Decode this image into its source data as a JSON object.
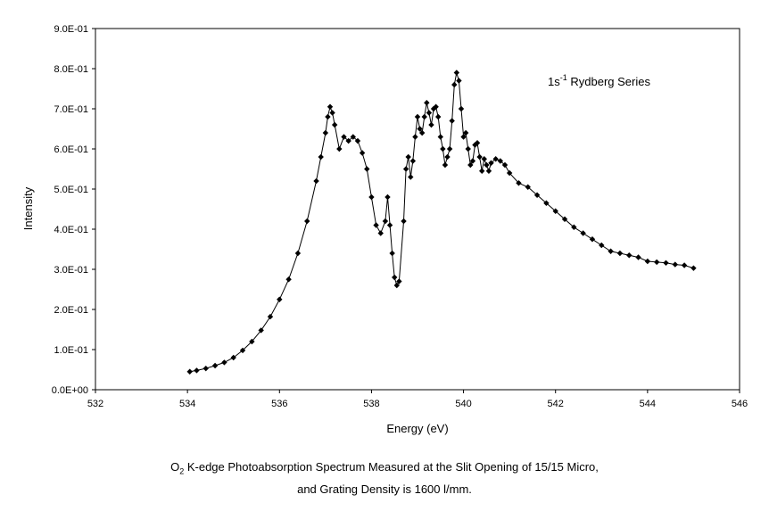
{
  "chart_data": {
    "type": "scatter",
    "xlabel": "Energy (eV)",
    "ylabel": "Intensity",
    "xlim": [
      532,
      546
    ],
    "ylim": [
      0,
      0.9
    ],
    "x_ticks": [
      "532",
      "534",
      "536",
      "538",
      "540",
      "542",
      "544",
      "546"
    ],
    "y_ticks": [
      "0.0E+00",
      "1.0E-01",
      "2.0E-01",
      "3.0E-01",
      "4.0E-01",
      "5.0E-01",
      "6.0E-01",
      "7.0E-01",
      "8.0E-01",
      "9.0E-01"
    ],
    "grid": false,
    "legend": "none",
    "annotation": {
      "prefix": "1s",
      "superscript": "-1",
      "suffix": " Rydberg Series"
    },
    "marker": "diamond",
    "line_color": "#000000",
    "series": [
      {
        "x": [
          534.05,
          534.2,
          534.4,
          534.6,
          534.8,
          535.0,
          535.2,
          535.4,
          535.6,
          535.8,
          536.0,
          536.2,
          536.4,
          536.6,
          536.8,
          536.9,
          537.0,
          537.05,
          537.1,
          537.15,
          537.2,
          537.3,
          537.4,
          537.5,
          537.6,
          537.7,
          537.8,
          537.9,
          538.0,
          538.1,
          538.2,
          538.3,
          538.35,
          538.4,
          538.45,
          538.5,
          538.55,
          538.6,
          538.7,
          538.75,
          538.8,
          538.85,
          538.9,
          538.95,
          539.0,
          539.05,
          539.1,
          539.15,
          539.2,
          539.25,
          539.3,
          539.35,
          539.4,
          539.45,
          539.5,
          539.55,
          539.6,
          539.65,
          539.7,
          539.75,
          539.8,
          539.85,
          539.9,
          539.95,
          540.0,
          540.05,
          540.1,
          540.15,
          540.2,
          540.25,
          540.3,
          540.35,
          540.4,
          540.45,
          540.5,
          540.55,
          540.6,
          540.7,
          540.8,
          540.9,
          541.0,
          541.2,
          541.4,
          541.6,
          541.8,
          542.0,
          542.2,
          542.4,
          542.6,
          542.8,
          543.0,
          543.2,
          543.4,
          543.6,
          543.8,
          544.0,
          544.2,
          544.4,
          544.6,
          544.8,
          545.0
        ],
        "y": [
          0.045,
          0.048,
          0.053,
          0.06,
          0.068,
          0.08,
          0.098,
          0.12,
          0.148,
          0.182,
          0.225,
          0.275,
          0.34,
          0.42,
          0.52,
          0.58,
          0.64,
          0.68,
          0.705,
          0.69,
          0.66,
          0.6,
          0.63,
          0.62,
          0.63,
          0.62,
          0.59,
          0.55,
          0.48,
          0.41,
          0.39,
          0.42,
          0.48,
          0.41,
          0.34,
          0.28,
          0.26,
          0.27,
          0.42,
          0.55,
          0.58,
          0.53,
          0.57,
          0.63,
          0.68,
          0.65,
          0.64,
          0.68,
          0.715,
          0.69,
          0.66,
          0.7,
          0.705,
          0.68,
          0.63,
          0.6,
          0.56,
          0.58,
          0.6,
          0.67,
          0.76,
          0.79,
          0.77,
          0.7,
          0.63,
          0.64,
          0.6,
          0.56,
          0.57,
          0.61,
          0.615,
          0.58,
          0.545,
          0.575,
          0.56,
          0.545,
          0.565,
          0.575,
          0.57,
          0.56,
          0.54,
          0.515,
          0.505,
          0.485,
          0.465,
          0.445,
          0.425,
          0.405,
          0.39,
          0.375,
          0.36,
          0.345,
          0.34,
          0.335,
          0.33,
          0.32,
          0.318,
          0.316,
          0.312,
          0.31,
          0.303
        ]
      }
    ]
  },
  "caption": {
    "line1_prefix": "O",
    "line1_subscript": "2",
    "line1_rest": " K-edge Photoabsorption Spectrum Measured at the Slit Opening of 15/15 Micro,",
    "line2": "and Grating Density is 1600 l/mm."
  }
}
